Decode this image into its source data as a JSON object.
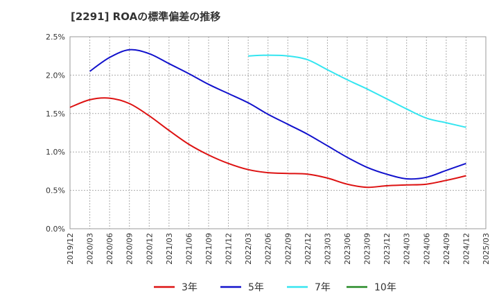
{
  "chart_data": {
    "type": "line",
    "title": "[2291]  ROAの標準偏差の推移",
    "xlabel": "",
    "ylabel": "",
    "ylim": [
      0,
      2.5
    ],
    "y_ticks": [
      "0.0%",
      "0.5%",
      "1.0%",
      "1.5%",
      "2.0%",
      "2.5%"
    ],
    "y_tick_values": [
      0,
      0.5,
      1.0,
      1.5,
      2.0,
      2.5
    ],
    "x_ticks": [
      "2019/12",
      "2020/03",
      "2020/06",
      "2020/09",
      "2020/12",
      "2021/03",
      "2021/06",
      "2021/09",
      "2021/12",
      "2022/03",
      "2022/06",
      "2022/09",
      "2022/12",
      "2023/03",
      "2023/06",
      "2023/09",
      "2023/12",
      "2024/03",
      "2024/06",
      "2024/09",
      "2024/12",
      "2025/03"
    ],
    "grid": true,
    "legend_position": "bottom",
    "series": [
      {
        "name": "3年",
        "color": "#dd1111",
        "x": [
          "2019/12",
          "2020/03",
          "2020/06",
          "2020/09",
          "2020/12",
          "2021/03",
          "2021/06",
          "2021/09",
          "2021/12",
          "2022/03",
          "2022/06",
          "2022/09",
          "2022/12",
          "2023/03",
          "2023/06",
          "2023/09",
          "2023/12",
          "2024/03",
          "2024/06",
          "2024/09",
          "2024/12"
        ],
        "values": [
          1.58,
          1.68,
          1.7,
          1.63,
          1.47,
          1.28,
          1.1,
          0.96,
          0.85,
          0.77,
          0.73,
          0.72,
          0.71,
          0.66,
          0.58,
          0.54,
          0.56,
          0.57,
          0.58,
          0.63,
          0.69
        ]
      },
      {
        "name": "5年",
        "color": "#1111cc",
        "x": [
          "2020/03",
          "2020/06",
          "2020/09",
          "2020/12",
          "2021/03",
          "2021/06",
          "2021/09",
          "2021/12",
          "2022/03",
          "2022/06",
          "2022/09",
          "2022/12",
          "2023/03",
          "2023/06",
          "2023/09",
          "2023/12",
          "2024/03",
          "2024/06",
          "2024/09",
          "2024/12"
        ],
        "values": [
          2.05,
          2.23,
          2.33,
          2.28,
          2.15,
          2.02,
          1.88,
          1.76,
          1.64,
          1.49,
          1.36,
          1.23,
          1.08,
          0.93,
          0.8,
          0.71,
          0.65,
          0.67,
          0.76,
          0.85
        ]
      },
      {
        "name": "7年",
        "color": "#33e5f0",
        "x": [
          "2022/03",
          "2022/06",
          "2022/09",
          "2022/12",
          "2023/03",
          "2023/06",
          "2023/09",
          "2023/12",
          "2024/03",
          "2024/06",
          "2024/09",
          "2024/12"
        ],
        "values": [
          2.25,
          2.26,
          2.25,
          2.2,
          2.07,
          1.94,
          1.82,
          1.69,
          1.56,
          1.44,
          1.38,
          1.32
        ]
      },
      {
        "name": "10年",
        "color": "#228822",
        "x": [],
        "values": []
      }
    ]
  }
}
